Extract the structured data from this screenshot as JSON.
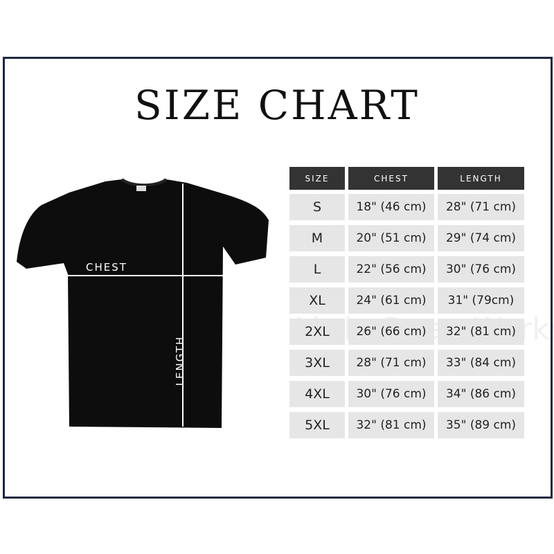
{
  "title": "SIZE CHART",
  "diagram": {
    "chest_label": "CHEST",
    "length_label": "LENGTH"
  },
  "table": {
    "headers": [
      "SIZE",
      "CHEST",
      "LENGTH"
    ],
    "rows": [
      [
        "S",
        "18\" (46 cm)",
        "28\" (71 cm)"
      ],
      [
        "M",
        "20\" (51 cm)",
        "29\" (74 cm)"
      ],
      [
        "L",
        "22\" (56 cm)",
        "30\" (76 cm)"
      ],
      [
        "XL",
        "24\" (61 cm)",
        "31\" (79cm)"
      ],
      [
        "2XL",
        "26\" (66 cm)",
        "32\" (81 cm)"
      ],
      [
        "3XL",
        "28\" (71 cm)",
        "33\" (84 cm)"
      ],
      [
        "4XL",
        "30\" (76 cm)",
        "34\" (86 cm)"
      ],
      [
        "5XL",
        "32\" (81 cm)",
        "35\" (89 cm)"
      ]
    ]
  },
  "watermark": "Little Swan Workshop",
  "colors": {
    "frame": "#1e2840",
    "header_bg": "#333333",
    "row_bg": "#e6e6e6",
    "shirt": "#0d0d0d"
  }
}
